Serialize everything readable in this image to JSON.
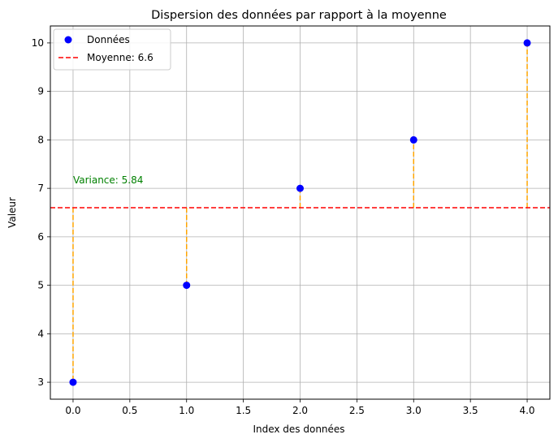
{
  "chart_data": {
    "type": "scatter",
    "title": "Dispersion des données par rapport à la moyenne",
    "xlabel": "Index des données",
    "ylabel": "Valeur",
    "xlim": [
      -0.2,
      4.2
    ],
    "ylim": [
      2.65,
      10.35
    ],
    "xticks": [
      0.0,
      0.5,
      1.0,
      1.5,
      2.0,
      2.5,
      3.0,
      3.5,
      4.0
    ],
    "xtick_labels": [
      "0.0",
      "0.5",
      "1.0",
      "1.5",
      "2.0",
      "2.5",
      "3.0",
      "3.5",
      "4.0"
    ],
    "yticks": [
      3,
      4,
      5,
      6,
      7,
      8,
      9,
      10
    ],
    "ytick_labels": [
      "3",
      "4",
      "5",
      "6",
      "7",
      "8",
      "9",
      "10"
    ],
    "grid": true,
    "legend_position": "top-left",
    "series": [
      {
        "name": "Données",
        "kind": "scatter",
        "color": "#0000ff",
        "x": [
          0,
          1,
          2,
          3,
          4
        ],
        "y": [
          3,
          5,
          7,
          8,
          10
        ]
      },
      {
        "name": "Moyenne: 6.6",
        "kind": "hline",
        "color": "#ff0000",
        "style": "dashed",
        "y": 6.6
      }
    ],
    "deviation_lines": {
      "color": "#ffa500",
      "style": "dashed",
      "from": 6.6
    },
    "annotation": {
      "text": "Variance: 5.84",
      "x": 0,
      "y": 7.1,
      "color": "#008000"
    }
  }
}
